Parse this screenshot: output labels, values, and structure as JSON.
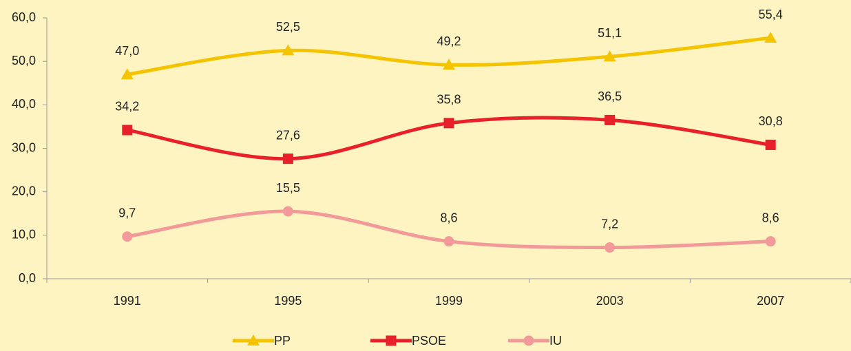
{
  "chart_data": {
    "type": "line",
    "categories": [
      "1991",
      "1995",
      "1999",
      "2003",
      "2007"
    ],
    "series": [
      {
        "name": "PP",
        "color": "#f5c400",
        "marker": "triangle",
        "values": [
          47.0,
          52.5,
          49.2,
          51.1,
          55.4
        ],
        "value_labels": [
          "47,0",
          "52,5",
          "49,2",
          "51,1",
          "55,4"
        ]
      },
      {
        "name": "PSOE",
        "color": "#e8202a",
        "marker": "square",
        "values": [
          34.2,
          27.6,
          35.8,
          36.5,
          30.8
        ],
        "value_labels": [
          "34,2",
          "27,6",
          "35,8",
          "36,5",
          "30,8"
        ]
      },
      {
        "name": "IU",
        "color": "#f29a9a",
        "marker": "circle",
        "values": [
          9.7,
          15.5,
          8.6,
          7.2,
          8.6
        ],
        "value_labels": [
          "9,7",
          "15,5",
          "8,6",
          "7,2",
          "8,6"
        ]
      }
    ],
    "ylim": [
      0,
      60
    ],
    "yticks": [
      {
        "value": 0,
        "label": "0,0"
      },
      {
        "value": 10,
        "label": "10,0"
      },
      {
        "value": 20,
        "label": "20,0"
      },
      {
        "value": 30,
        "label": "30,0"
      },
      {
        "value": 40,
        "label": "40,0"
      },
      {
        "value": 50,
        "label": "50,0"
      },
      {
        "value": 60,
        "label": "60,0"
      }
    ],
    "grid": false,
    "legend": "bottom"
  }
}
